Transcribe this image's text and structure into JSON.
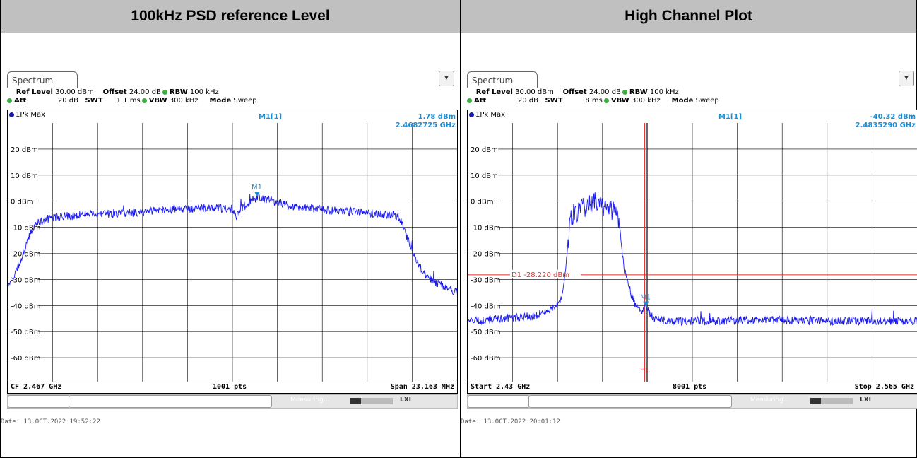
{
  "headers": {
    "left": "100kHz PSD reference Level",
    "right": "High Channel Plot"
  },
  "panels": [
    {
      "tab": "Spectrum",
      "menu_icon": "settings-menu-icon",
      "ref_level_label": "Ref Level",
      "ref_level": "30.00 dBm",
      "offset_label": "Offset",
      "offset": "24.00 dB",
      "rbw_label": "RBW",
      "rbw": "100 kHz",
      "att_label": "Att",
      "att": "20 dB",
      "swt_label": "SWT",
      "swt": "1.1 ms",
      "vbw_label": "VBW",
      "vbw": "300 kHz",
      "mode_label": "Mode",
      "mode": "Sweep",
      "trace": "1Pk Max",
      "marker_label": "M1[1]",
      "marker_value": "1.78 dBm",
      "marker_freq": "2.4682725 GHz",
      "footer_left": "CF 2.467 GHz",
      "footer_mid": "1001 pts",
      "footer_right": "Span 23.163 MHz",
      "status_text": "Measuring...",
      "date": "Date: 13.OCT.2022  19:52:22"
    },
    {
      "tab": "Spectrum",
      "menu_icon": "settings-menu-icon",
      "ref_level_label": "Ref Level",
      "ref_level": "30.00 dBm",
      "offset_label": "Offset",
      "offset": "24.00 dB",
      "rbw_label": "RBW",
      "rbw": "100 kHz",
      "att_label": "Att",
      "att": "20 dB",
      "swt_label": "SWT",
      "swt": "8 ms",
      "vbw_label": "VBW",
      "vbw": "300 kHz",
      "mode_label": "Mode",
      "mode": "Sweep",
      "trace": "1Pk Max",
      "marker_label": "M1[1]",
      "marker_value": "-40.32 dBm",
      "marker_freq": "2.4835290 GHz",
      "footer_left": "Start 2.43 GHz",
      "footer_mid": "8001 pts",
      "footer_right": "Stop 2.565 GHz",
      "status_text": "Measuring...",
      "date": "Date: 13.OCT.2022  20:01:12"
    }
  ],
  "chart_data": [
    {
      "type": "line",
      "title": "100kHz PSD reference Level",
      "y_tick_labels": [
        "20 dBm",
        "10 dBm",
        "0 dBm",
        "-10 dBm",
        "-20 dBm",
        "-30 dBm",
        "-40 dBm",
        "-50 dBm",
        "-60 dBm"
      ],
      "y_ticks": [
        20,
        10,
        0,
        -10,
        -20,
        -30,
        -40,
        -50,
        -60
      ],
      "ylim": [
        -70,
        30
      ],
      "xlim": [
        2.4554185,
        2.4785815
      ],
      "x_unit": "GHz",
      "grid": true,
      "series": [
        {
          "color": "#1a1af0",
          "x": [
            2.4554,
            2.4558,
            2.4562,
            2.4566,
            2.457,
            2.4578,
            2.46,
            2.462,
            2.464,
            2.466,
            2.467,
            2.4672,
            2.4674,
            2.4683,
            2.47,
            2.472,
            2.474,
            2.4756,
            2.4758,
            2.4762,
            2.4768,
            2.4774,
            2.478,
            2.4786
          ],
          "y": [
            -33,
            -28,
            -20,
            -12,
            -8,
            -6,
            -5,
            -4.5,
            -3,
            -2.5,
            -3,
            -7,
            -3,
            1.78,
            -2,
            -3.5,
            -4.5,
            -6,
            -10,
            -18,
            -27,
            -31,
            -33,
            -35
          ]
        }
      ],
      "markers": [
        {
          "label": "M1",
          "x": 2.4682725,
          "y": 1.78
        }
      ],
      "vertical_lines": [
        2.4577,
        2.46,
        2.4624,
        2.4647,
        2.467,
        2.4693,
        2.4716,
        2.4739,
        2.4763
      ]
    },
    {
      "type": "line",
      "title": "High Channel Plot",
      "y_tick_labels": [
        "20 dBm",
        "10 dBm",
        "0 dBm",
        "-10 dBm",
        "-20 dBm",
        "-30 dBm",
        "-40 dBm",
        "-50 dBm",
        "-60 dBm"
      ],
      "y_ticks": [
        20,
        10,
        0,
        -10,
        -20,
        -30,
        -40,
        -50,
        -60
      ],
      "ylim": [
        -70,
        30
      ],
      "xlim": [
        2.43,
        2.565
      ],
      "x_unit": "GHz",
      "grid": true,
      "series": [
        {
          "color": "#1a1af0",
          "x": [
            2.43,
            2.44,
            2.45,
            2.455,
            2.458,
            2.459,
            2.46,
            2.461,
            2.463,
            2.466,
            2.469,
            2.472,
            2.475,
            2.476,
            2.477,
            2.478,
            2.479,
            2.48,
            2.482,
            2.4835,
            2.486,
            2.49,
            2.5,
            2.52,
            2.54,
            2.565
          ],
          "y": [
            -46,
            -45,
            -44,
            -42,
            -38,
            -32,
            -18,
            -6,
            -4,
            -2,
            0,
            -3,
            -5,
            -15,
            -26,
            -30,
            -35,
            -39,
            -42,
            -40.32,
            -45,
            -46,
            -46,
            -45.5,
            -46,
            -46
          ]
        }
      ],
      "markers": [
        {
          "label": "M1",
          "x": 2.483529,
          "y": -40.32
        }
      ],
      "display_line": {
        "label": "D1",
        "value_text": "-28.220 dBm",
        "y": -28.22
      },
      "freq_line": {
        "label": "F1",
        "x": 2.4835
      }
    }
  ]
}
